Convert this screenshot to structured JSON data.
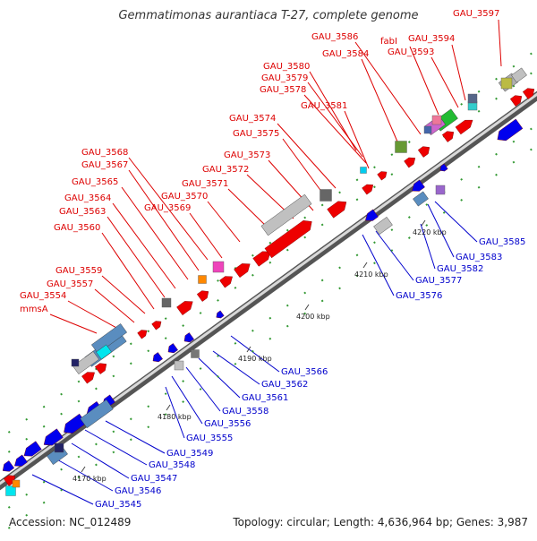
{
  "title": "Gemmatimonas aurantiaca T-27, complete genome",
  "accession": "Accession: NC_012489",
  "summary": "Topology: circular; Length: 4,636,964 bp; Genes: 3,987",
  "colors": {
    "forward": "#ee0000",
    "reverse": "#0000ee",
    "upper_label": "#dd0000",
    "lower_label": "#0000cc"
  },
  "ticks": [
    "4170 kbp",
    "4180 kbp",
    "4190 kbp",
    "4200 kbp",
    "4210 kbp",
    "4220 kbp"
  ],
  "upper_labels": [
    "GAU_3597",
    "GAU_3586",
    "fabI",
    "GAU_3594",
    "GAU_3593",
    "GAU_3584",
    "GAU_3580",
    "GAU_3579",
    "GAU_3578",
    "GAU_3581",
    "GAU_3574",
    "GAU_3575",
    "GAU_3568",
    "GAU_3567",
    "GAU_3573",
    "GAU_3572",
    "GAU_3565",
    "GAU_3571",
    "GAU_3564",
    "GAU_3570",
    "GAU_3563",
    "GAU_3569",
    "GAU_3560",
    "GAU_3559",
    "GAU_3557",
    "GAU_3554",
    "mmsA"
  ],
  "lower_labels": [
    "GAU_3585",
    "GAU_3583",
    "GAU_3582",
    "GAU_3577",
    "GAU_3576",
    "GAU_3566",
    "GAU_3562",
    "GAU_3561",
    "GAU_3558",
    "GAU_3556",
    "GAU_3555",
    "GAU_3549",
    "GAU_3548",
    "GAU_3547",
    "GAU_3546",
    "GAU_3545"
  ]
}
